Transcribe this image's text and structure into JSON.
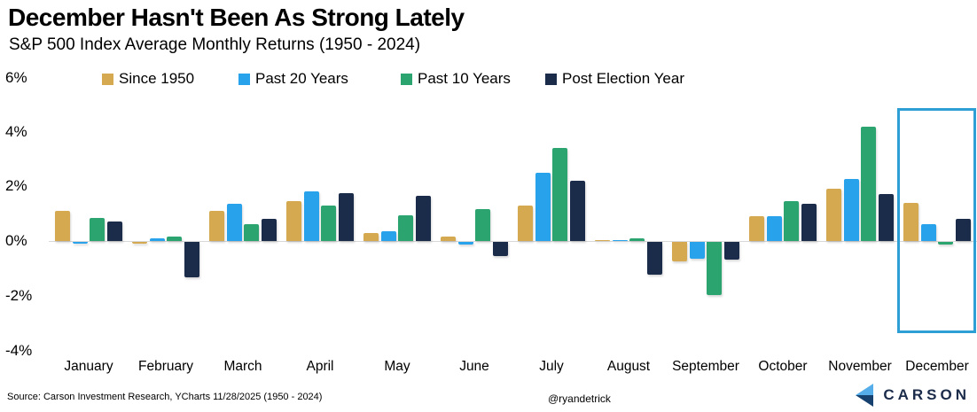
{
  "header": {
    "title": "December Hasn't Been As Strong Lately",
    "subtitle": "S&P 500 Index Average Monthly Returns (1950 - 2024)"
  },
  "chart_data": {
    "type": "bar",
    "categories": [
      "January",
      "February",
      "March",
      "April",
      "May",
      "June",
      "July",
      "August",
      "September",
      "October",
      "November",
      "December"
    ],
    "series": [
      {
        "name": "Since 1950",
        "color": "#d5a94f",
        "values": [
          1.1,
          -0.05,
          1.1,
          1.45,
          0.3,
          0.15,
          1.3,
          0.0,
          -0.7,
          0.9,
          1.9,
          1.4
        ]
      },
      {
        "name": "Past 20 Years",
        "color": "#29a2ec",
        "values": [
          -0.05,
          0.1,
          1.35,
          1.8,
          0.35,
          -0.1,
          2.5,
          0.0,
          -0.6,
          0.9,
          2.25,
          0.6
        ]
      },
      {
        "name": "Past 10 Years",
        "color": "#2ca46f",
        "values": [
          0.85,
          0.15,
          0.6,
          1.3,
          0.95,
          1.15,
          3.4,
          0.1,
          -1.95,
          1.45,
          4.15,
          -0.1
        ]
      },
      {
        "name": "Post Election Year",
        "color": "#1b2b4a",
        "values": [
          0.7,
          -1.3,
          0.8,
          1.75,
          1.65,
          -0.5,
          2.2,
          -1.2,
          -0.65,
          1.35,
          1.7,
          0.8
        ]
      }
    ],
    "ylim": [
      -4,
      6
    ],
    "ytick_labels": [
      "6%",
      "4%",
      "2%",
      "0%",
      "-2%",
      "-4%"
    ],
    "grid": false,
    "legend_position": "top",
    "highlight_category": "December",
    "highlight_color": "#2e9fd4"
  },
  "footer": {
    "source": "Source: Carson Investment Research, YCharts 11/28/2025 (1950 - 2024)",
    "handle": "@ryandetrick",
    "brand": "CARSON"
  }
}
